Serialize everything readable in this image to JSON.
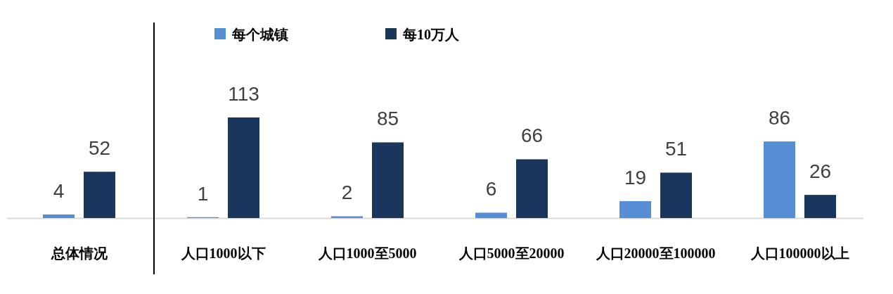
{
  "chart_data": {
    "type": "bar",
    "categories": [
      "总体情况",
      "人口1000以下",
      "人口1000至5000",
      "人口5000至20000",
      "人口20000至100000",
      "人口100000以上"
    ],
    "series": [
      {
        "name": "每个城镇",
        "color": "#558ed5",
        "values": [
          4,
          1,
          2,
          6,
          19,
          86
        ]
      },
      {
        "name": "每10万人",
        "color": "#1b365d",
        "values": [
          52,
          113,
          85,
          66,
          51,
          26
        ]
      }
    ],
    "data_labels": true,
    "legend": "top"
  }
}
